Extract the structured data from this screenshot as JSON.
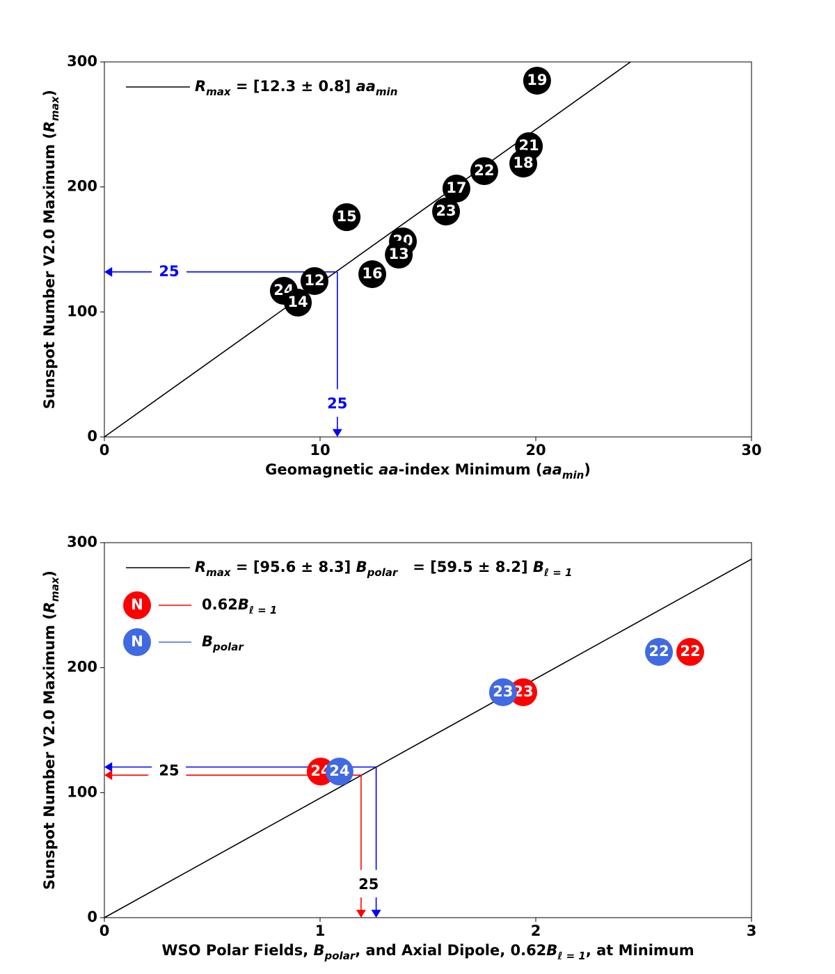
{
  "chart_data": [
    {
      "type": "scatter",
      "x_label": [
        {
          "text": "Geomagnetic ",
          "style": ""
        },
        {
          "text": "aa",
          "style": "i"
        },
        {
          "text": "-index Minimum (",
          "style": ""
        },
        {
          "text": "aa",
          "style": "i"
        },
        {
          "text": "min",
          "style": "sub"
        },
        {
          "text": ")",
          "style": ""
        }
      ],
      "y_label": [
        {
          "text": "Sunspot Number V2.0 Maximum (",
          "style": ""
        },
        {
          "text": "R",
          "style": "i"
        },
        {
          "text": "max",
          "style": "sub"
        },
        {
          "text": ")",
          "style": ""
        }
      ],
      "xlim": [
        0,
        30
      ],
      "ylim": [
        0,
        300
      ],
      "xticks": [
        0,
        10,
        20,
        30
      ],
      "yticks": [
        0,
        100,
        200,
        300
      ],
      "fit": {
        "slope": 12.3,
        "color": "#000000",
        "label": [
          {
            "text": "R",
            "style": "i"
          },
          {
            "text": "max",
            "style": "sub"
          },
          {
            "text": " = [12.3 ± 0.8] ",
            "style": ""
          },
          {
            "text": "aa",
            "style": "i"
          },
          {
            "text": "min",
            "style": "sub"
          }
        ]
      },
      "series": [
        {
          "color": "#000000",
          "x": [
            20.06,
            19.68,
            19.42,
            17.61,
            16.32,
            15.84,
            11.23,
            13.84,
            13.65,
            12.42,
            9.74,
            8.32,
            8.97
          ],
          "values": [
            285,
            232.6,
            218.7,
            212.6,
            198.7,
            180.3,
            175.8,
            156.4,
            145.8,
            130.2,
            124.7,
            116.9,
            107.4
          ],
          "point_labels": [
            "19",
            "21",
            "18",
            "22",
            "17",
            "23",
            "15",
            "20",
            "13",
            "16",
            "12",
            "24",
            "14"
          ]
        }
      ],
      "predictions": [
        {
          "x": 10.8,
          "y": 132,
          "color": "#0000ff"
        }
      ],
      "prediction_label": "25",
      "prediction_label_color": "#0000ff"
    },
    {
      "type": "scatter",
      "x_label": [
        {
          "text": "WSO Polar Fields, ",
          "style": ""
        },
        {
          "text": "B",
          "style": "i"
        },
        {
          "text": "polar",
          "style": "sub"
        },
        {
          "text": ", and Axial Dipole, 0.62",
          "style": ""
        },
        {
          "text": "B",
          "style": "i"
        },
        {
          "text": "ℓ = 1",
          "style": "sub"
        },
        {
          "text": ", at Minimum",
          "style": ""
        }
      ],
      "y_label": [
        {
          "text": "Sunspot Number V2.0 Maximum (",
          "style": ""
        },
        {
          "text": "R",
          "style": "i"
        },
        {
          "text": "max",
          "style": "sub"
        },
        {
          "text": ")",
          "style": ""
        }
      ],
      "xlim": [
        0,
        3
      ],
      "ylim": [
        0,
        300
      ],
      "xticks": [
        0,
        1,
        2,
        3
      ],
      "yticks": [
        0,
        100,
        200,
        300
      ],
      "fit": {
        "slope": 95.6,
        "color": "#000000",
        "label": [
          {
            "text": "R",
            "style": "i"
          },
          {
            "text": "max",
            "style": "sub"
          },
          {
            "text": " = [95.6 ± 8.3] ",
            "style": ""
          },
          {
            "text": "B",
            "style": "i"
          },
          {
            "text": "polar",
            "style": "sub"
          },
          {
            "text": "   = [59.5 ± 8.2] ",
            "style": ""
          },
          {
            "text": "B",
            "style": "i"
          },
          {
            "text": "ℓ = 1",
            "style": "sub"
          }
        ]
      },
      "series": [
        {
          "name": [
            {
              "text": "0.62",
              "style": ""
            },
            {
              "text": "B",
              "style": "i"
            },
            {
              "text": "ℓ = 1",
              "style": "sub"
            }
          ],
          "color": "#ff0000",
          "marker_text": "N",
          "x": [
            1.003,
            1.942,
            2.716
          ],
          "values": [
            116.9,
            180.3,
            212.6
          ],
          "point_labels": [
            "24",
            "23",
            "22"
          ]
        },
        {
          "name": [
            {
              "text": "B",
              "style": "i"
            },
            {
              "text": "polar",
              "style": "sub"
            }
          ],
          "color": "#4169e1",
          "marker_text": "N",
          "x": [
            1.09,
            1.848,
            2.571
          ],
          "values": [
            116.9,
            180.3,
            212.6
          ],
          "point_labels": [
            "24",
            "23",
            "22"
          ]
        }
      ],
      "predictions": [
        {
          "x": 1.26,
          "y": 120.5,
          "color": "#0000ff"
        },
        {
          "x": 1.19,
          "y": 114,
          "color": "#ff0000"
        }
      ],
      "prediction_label": "25",
      "prediction_label_color": "#000000"
    }
  ]
}
